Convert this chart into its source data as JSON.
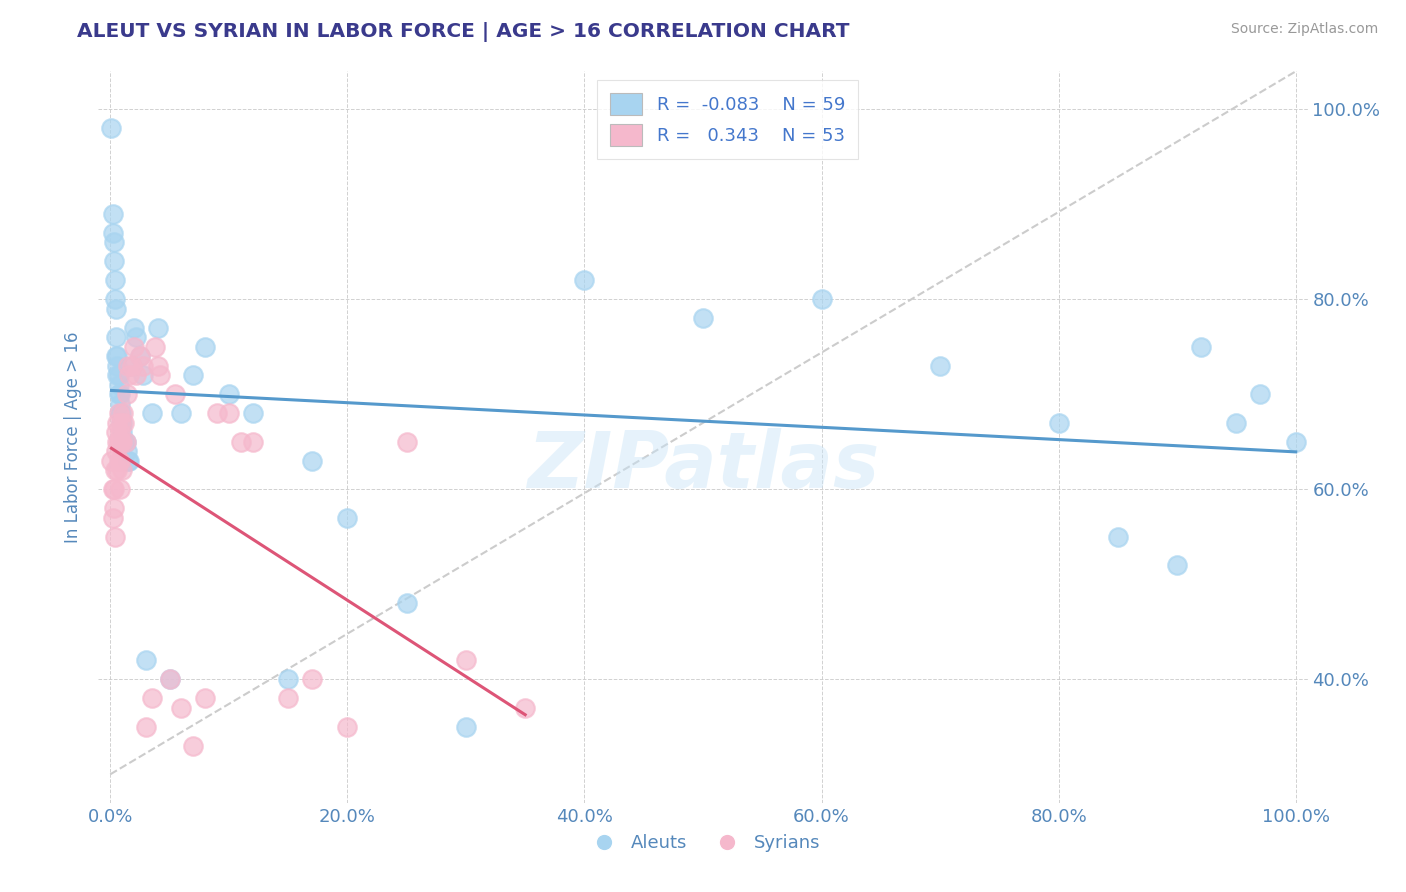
{
  "title": "ALEUT VS SYRIAN IN LABOR FORCE | AGE > 16 CORRELATION CHART",
  "ylabel": "In Labor Force | Age > 16",
  "source": "Source: ZipAtlas.com",
  "watermark": "ZIPatlas",
  "aleut_R": -0.083,
  "aleut_N": 59,
  "syrian_R": 0.343,
  "syrian_N": 53,
  "aleut_color": "#a8d4f0",
  "syrian_color": "#f5b8cc",
  "trend_aleut_color": "#5599cc",
  "trend_syrian_color": "#dd5577",
  "trend_ref_color": "#cccccc",
  "background_color": "#ffffff",
  "title_color": "#3a3a8c",
  "axis_label_color": "#5588bb",
  "tick_color": "#5588bb",
  "legend_text_color": "#4477cc",
  "aleut_x": [
    0.001,
    0.002,
    0.002,
    0.003,
    0.003,
    0.004,
    0.004,
    0.005,
    0.005,
    0.005,
    0.006,
    0.006,
    0.006,
    0.007,
    0.007,
    0.007,
    0.008,
    0.008,
    0.008,
    0.009,
    0.009,
    0.01,
    0.01,
    0.011,
    0.012,
    0.013,
    0.014,
    0.015,
    0.016,
    0.018,
    0.02,
    0.022,
    0.025,
    0.028,
    0.03,
    0.035,
    0.04,
    0.05,
    0.06,
    0.07,
    0.08,
    0.1,
    0.12,
    0.15,
    0.17,
    0.2,
    0.25,
    0.3,
    0.4,
    0.5,
    0.6,
    0.7,
    0.8,
    0.85,
    0.9,
    0.92,
    0.95,
    0.97,
    1.0
  ],
  "aleut_y": [
    0.98,
    0.89,
    0.87,
    0.86,
    0.84,
    0.82,
    0.8,
    0.79,
    0.76,
    0.74,
    0.74,
    0.73,
    0.72,
    0.72,
    0.71,
    0.7,
    0.7,
    0.69,
    0.68,
    0.68,
    0.67,
    0.67,
    0.66,
    0.65,
    0.65,
    0.65,
    0.64,
    0.63,
    0.63,
    0.73,
    0.77,
    0.76,
    0.74,
    0.72,
    0.42,
    0.68,
    0.77,
    0.4,
    0.68,
    0.72,
    0.75,
    0.7,
    0.68,
    0.4,
    0.63,
    0.57,
    0.48,
    0.35,
    0.82,
    0.78,
    0.8,
    0.73,
    0.67,
    0.55,
    0.52,
    0.75,
    0.67,
    0.7,
    0.65
  ],
  "syrian_x": [
    0.001,
    0.002,
    0.002,
    0.003,
    0.003,
    0.004,
    0.004,
    0.005,
    0.005,
    0.006,
    0.006,
    0.006,
    0.007,
    0.007,
    0.007,
    0.008,
    0.008,
    0.008,
    0.009,
    0.009,
    0.01,
    0.01,
    0.011,
    0.012,
    0.013,
    0.014,
    0.015,
    0.016,
    0.018,
    0.02,
    0.022,
    0.025,
    0.028,
    0.03,
    0.035,
    0.04,
    0.05,
    0.06,
    0.07,
    0.08,
    0.1,
    0.12,
    0.15,
    0.17,
    0.2,
    0.25,
    0.3,
    0.35,
    0.038,
    0.042,
    0.055,
    0.09,
    0.11
  ],
  "syrian_y": [
    0.63,
    0.6,
    0.57,
    0.58,
    0.6,
    0.62,
    0.55,
    0.64,
    0.66,
    0.65,
    0.62,
    0.67,
    0.63,
    0.65,
    0.68,
    0.66,
    0.63,
    0.6,
    0.65,
    0.67,
    0.65,
    0.62,
    0.68,
    0.67,
    0.65,
    0.7,
    0.73,
    0.72,
    0.73,
    0.75,
    0.72,
    0.74,
    0.73,
    0.35,
    0.38,
    0.73,
    0.4,
    0.37,
    0.33,
    0.38,
    0.68,
    0.65,
    0.38,
    0.4,
    0.35,
    0.65,
    0.42,
    0.37,
    0.75,
    0.72,
    0.7,
    0.68,
    0.65
  ],
  "xlim": [
    -0.01,
    1.01
  ],
  "ylim": [
    0.27,
    1.04
  ],
  "x_ticks": [
    0.0,
    0.2,
    0.4,
    0.6,
    0.8,
    1.0
  ],
  "x_tick_labels": [
    "0.0%",
    "20.0%",
    "40.0%",
    "60.0%",
    "80.0%",
    "100.0%"
  ],
  "y_ticks": [
    0.4,
    0.6,
    0.8,
    1.0
  ],
  "y_tick_labels": [
    "40.0%",
    "60.0%",
    "80.0%",
    "100.0%"
  ]
}
